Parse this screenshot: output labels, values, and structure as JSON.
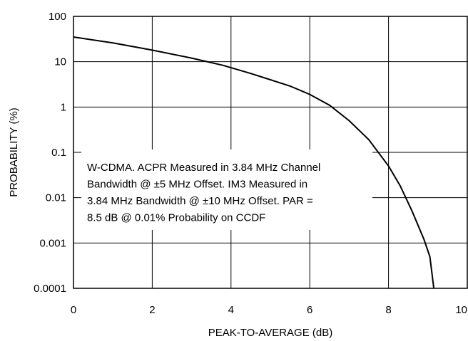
{
  "chart_data": {
    "type": "line",
    "title": "",
    "xlabel": "PEAK-TO-AVERAGE (dB)",
    "ylabel": "PROBABILITY (%)",
    "xlim": [
      0,
      10
    ],
    "ylim": [
      0.0001,
      100
    ],
    "yscale": "log",
    "grid": true,
    "x_ticks": [
      0,
      2,
      4,
      6,
      8,
      10
    ],
    "x_tick_labels": [
      "0",
      "2",
      "4",
      "6",
      "8",
      "10"
    ],
    "y_ticks": [
      100,
      10,
      1,
      0.1,
      0.01,
      0.001,
      0.0001
    ],
    "y_tick_labels": [
      "100",
      "10",
      "1",
      "0.1",
      "0.01",
      "0.001",
      "0.0001"
    ],
    "series": [
      {
        "name": "",
        "x": [
          0,
          1,
          2,
          3,
          3.8,
          4.5,
          5,
          5.5,
          6,
          6.5,
          7,
          7.5,
          8,
          8.3,
          8.6,
          8.9,
          9.05,
          9.15
        ],
        "y": [
          35,
          26,
          18,
          12,
          8.3,
          5.5,
          4.0,
          2.9,
          1.9,
          1.1,
          0.5,
          0.19,
          0.05,
          0.018,
          0.005,
          0.0012,
          0.0005,
          0.0001
        ]
      }
    ],
    "annotation": {
      "lines": [
        "W-CDMA. ACPR Measured in 3.84 MHz Channel",
        "Bandwidth @ ±5 MHz Offset. IM3 Measured in",
        "3.84 MHz Bandwidth @ ±10 MHz Offset. PAR =",
        "8.5 dB @ 0.01% Probability on CCDF"
      ]
    },
    "colors": {
      "line": "#000000",
      "grid": "#000000",
      "background": "#ffffff"
    }
  }
}
